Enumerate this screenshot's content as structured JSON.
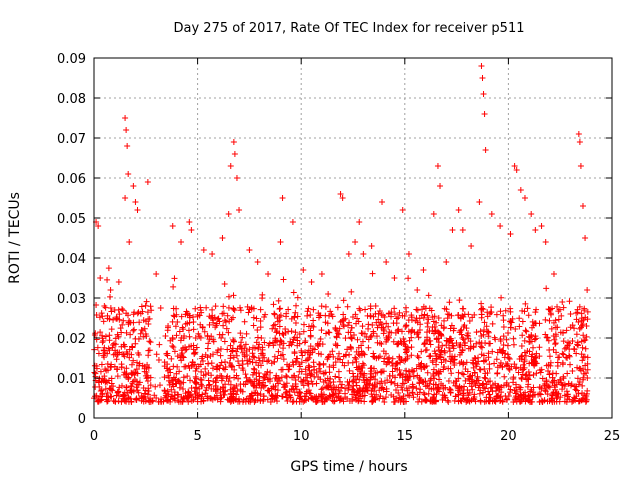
{
  "chart_data": {
    "type": "scatter",
    "title": "Day 275 of 2017, Rate Of TEC Index for receiver p511",
    "xlabel": "GPS time / hours",
    "ylabel": "ROTI / TECUs",
    "xlim": [
      0,
      24
    ],
    "ylim": [
      0,
      0.09
    ],
    "xticks": [
      "0",
      "5",
      "10",
      "15",
      "20",
      "25"
    ],
    "yticks": [
      "0",
      "0.01",
      "0.02",
      "0.03",
      "0.04",
      "0.05",
      "0.06",
      "0.07",
      "0.08",
      "0.09"
    ],
    "grid": true,
    "marker": "+",
    "color": "#ff0000",
    "series": [
      {
        "name": "ROTI",
        "note": "dense point cloud; representative envelope of the plotted points",
        "points": [
          [
            0.1,
            0.049
          ],
          [
            0.2,
            0.048
          ],
          [
            0.3,
            0.035
          ],
          [
            0.5,
            0.028
          ],
          [
            0.8,
            0.032
          ],
          [
            1.0,
            0.027
          ],
          [
            1.2,
            0.034
          ],
          [
            1.5,
            0.075
          ],
          [
            1.55,
            0.072
          ],
          [
            1.6,
            0.068
          ],
          [
            1.65,
            0.061
          ],
          [
            1.5,
            0.055
          ],
          [
            1.9,
            0.058
          ],
          [
            2.0,
            0.054
          ],
          [
            2.1,
            0.052
          ],
          [
            1.7,
            0.044
          ],
          [
            2.6,
            0.059
          ],
          [
            2.5,
            0.021
          ],
          [
            3.0,
            0.036
          ],
          [
            3.8,
            0.048
          ],
          [
            4.2,
            0.044
          ],
          [
            4.6,
            0.049
          ],
          [
            4.7,
            0.047
          ],
          [
            5.3,
            0.042
          ],
          [
            5.7,
            0.041
          ],
          [
            6.2,
            0.045
          ],
          [
            6.5,
            0.051
          ],
          [
            6.6,
            0.063
          ],
          [
            6.75,
            0.069
          ],
          [
            6.8,
            0.066
          ],
          [
            6.9,
            0.06
          ],
          [
            7.0,
            0.052
          ],
          [
            7.5,
            0.042
          ],
          [
            7.9,
            0.039
          ],
          [
            8.4,
            0.036
          ],
          [
            9.0,
            0.044
          ],
          [
            9.1,
            0.055
          ],
          [
            9.6,
            0.049
          ],
          [
            10.1,
            0.037
          ],
          [
            10.5,
            0.034
          ],
          [
            11.0,
            0.036
          ],
          [
            11.3,
            0.031
          ],
          [
            11.9,
            0.056
          ],
          [
            12.0,
            0.055
          ],
          [
            12.3,
            0.041
          ],
          [
            12.6,
            0.044
          ],
          [
            12.8,
            0.049
          ],
          [
            13.0,
            0.041
          ],
          [
            13.4,
            0.043
          ],
          [
            13.9,
            0.054
          ],
          [
            14.1,
            0.039
          ],
          [
            14.5,
            0.035
          ],
          [
            14.9,
            0.052
          ],
          [
            15.2,
            0.041
          ],
          [
            15.6,
            0.032
          ],
          [
            15.9,
            0.037
          ],
          [
            16.4,
            0.051
          ],
          [
            16.6,
            0.063
          ],
          [
            16.7,
            0.058
          ],
          [
            17.0,
            0.039
          ],
          [
            17.3,
            0.047
          ],
          [
            17.6,
            0.052
          ],
          [
            17.8,
            0.047
          ],
          [
            18.2,
            0.043
          ],
          [
            18.6,
            0.054
          ],
          [
            18.7,
            0.088
          ],
          [
            18.75,
            0.085
          ],
          [
            18.8,
            0.081
          ],
          [
            18.85,
            0.076
          ],
          [
            18.9,
            0.067
          ],
          [
            19.2,
            0.051
          ],
          [
            19.6,
            0.048
          ],
          [
            20.1,
            0.046
          ],
          [
            20.3,
            0.063
          ],
          [
            20.4,
            0.062
          ],
          [
            20.6,
            0.057
          ],
          [
            20.8,
            0.055
          ],
          [
            21.1,
            0.051
          ],
          [
            21.3,
            0.047
          ],
          [
            21.6,
            0.048
          ],
          [
            21.8,
            0.044
          ],
          [
            22.2,
            0.036
          ],
          [
            22.6,
            0.029
          ],
          [
            23.0,
            0.026
          ],
          [
            23.4,
            0.071
          ],
          [
            23.45,
            0.069
          ],
          [
            23.5,
            0.063
          ],
          [
            23.6,
            0.053
          ],
          [
            23.7,
            0.045
          ],
          [
            23.8,
            0.032
          ]
        ]
      }
    ]
  }
}
